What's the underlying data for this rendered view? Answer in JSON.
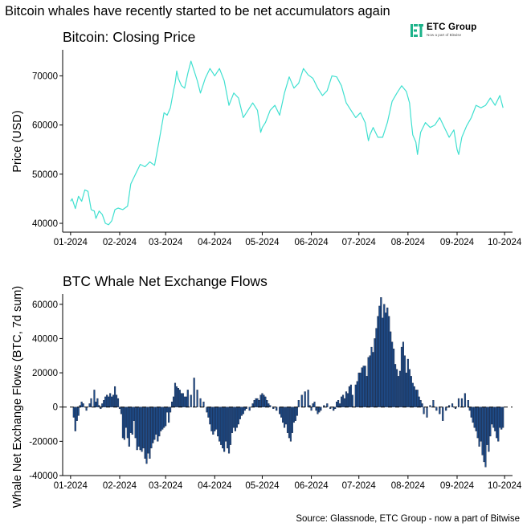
{
  "headline": "Bitcoin whales have recently started to be net accumulators again",
  "logo": {
    "name": "ETC Group",
    "tagline": "Now a part of Bitwise",
    "icon": "etc-group-logo-icon",
    "color": "#1db38a"
  },
  "source": "Source: Glassnode, ETC Group - now a part of Bitwise",
  "chart_data": [
    {
      "type": "line",
      "title": "Bitcoin: Closing Price",
      "xlabel": "",
      "ylabel": "Price (USD)",
      "color": "#40e0d0",
      "ylim": [
        38200,
        75300
      ],
      "yticks": [
        40000,
        50000,
        60000,
        70000
      ],
      "ytick_labels": [
        "40000",
        "50000",
        "60000",
        "70000"
      ],
      "xticks": [
        "01-2024",
        "02-2024",
        "03-2024",
        "04-2024",
        "05-2024",
        "06-2024",
        "07-2024",
        "08-2024",
        "09-2024",
        "10-2024"
      ],
      "x_range_days": [
        -5,
        279
      ],
      "x": [
        0,
        1,
        3,
        5,
        7,
        9,
        11,
        13,
        15,
        16,
        18,
        20,
        22,
        24,
        26,
        28,
        30,
        33,
        36,
        38,
        41,
        44,
        47,
        50,
        53,
        56,
        59,
        61,
        63,
        65,
        66,
        67,
        68,
        70,
        72,
        74,
        76,
        78,
        80,
        82,
        85,
        88,
        91,
        94,
        97,
        100,
        103,
        106,
        109,
        112,
        115,
        118,
        120,
        121,
        123,
        126,
        129,
        132,
        135,
        138,
        141,
        144,
        147,
        150,
        153,
        156,
        159,
        162,
        165,
        168,
        171,
        174,
        177,
        180,
        183,
        186,
        188,
        189,
        191,
        194,
        197,
        200,
        203,
        206,
        209,
        212,
        214,
        215,
        216,
        218,
        219,
        221,
        224,
        227,
        230,
        233,
        236,
        239,
        242,
        244,
        245,
        247,
        250,
        253,
        256,
        259,
        262,
        265,
        268,
        271,
        273
      ],
      "values": [
        44500,
        45000,
        43000,
        45500,
        44500,
        46800,
        46500,
        42800,
        42500,
        41000,
        42500,
        41800,
        40000,
        39700,
        40500,
        42800,
        43100,
        42800,
        43500,
        48000,
        50000,
        52000,
        51500,
        52500,
        51800,
        57000,
        62500,
        62000,
        63500,
        67000,
        68500,
        71000,
        69500,
        68000,
        67500,
        70500,
        73000,
        71000,
        69000,
        66500,
        69500,
        71500,
        70000,
        71500,
        69000,
        64000,
        66500,
        65500,
        61500,
        63000,
        64500,
        63000,
        58500,
        59500,
        60500,
        63000,
        64000,
        62000,
        66500,
        69800,
        67500,
        68500,
        71500,
        70200,
        69500,
        67500,
        66000,
        67000,
        70000,
        69800,
        68000,
        64500,
        63000,
        61500,
        62500,
        60500,
        56800,
        58000,
        59500,
        57500,
        57500,
        60500,
        64800,
        66500,
        68000,
        66800,
        64500,
        61000,
        58000,
        56500,
        54000,
        58500,
        60500,
        59500,
        60000,
        61500,
        59500,
        57500,
        59000,
        55000,
        54000,
        57500,
        59800,
        61500,
        64000,
        63500,
        64000,
        65500,
        64000,
        66000,
        63500
      ],
      "notes": "x = days since 2024-01-01; values read from gridlines (approximate)"
    },
    {
      "type": "bar",
      "title": "BTC Whale Net Exchange Flows",
      "xlabel": "",
      "ylabel": "Whale Net Exchange Flows (BTC, 7d sum)",
      "color": "#1f4e8c",
      "edge_color": "#0b1530",
      "zero_line": "dashed",
      "ylim": [
        -40000,
        66000
      ],
      "yticks": [
        -40000,
        -20000,
        0,
        20000,
        40000,
        60000
      ],
      "ytick_labels": [
        "-40000",
        "-20000",
        "0",
        "20000",
        "40000",
        "60000"
      ],
      "xticks": [
        "01-2024",
        "02-2024",
        "03-2024",
        "04-2024",
        "05-2024",
        "06-2024",
        "07-2024",
        "08-2024",
        "09-2024",
        "10-2024"
      ],
      "x_range_days": [
        -5,
        279
      ],
      "x": [
        2,
        3,
        4,
        5,
        6,
        7,
        8,
        10,
        12,
        13,
        15,
        16,
        17,
        18,
        19,
        20,
        21,
        22,
        23,
        24,
        25,
        26,
        27,
        28,
        29,
        30,
        31,
        32,
        33,
        34,
        35,
        36,
        37,
        38,
        39,
        40,
        41,
        42,
        43,
        44,
        45,
        46,
        47,
        48,
        49,
        50,
        51,
        52,
        53,
        54,
        55,
        56,
        57,
        58,
        59,
        60,
        61,
        62,
        63,
        64,
        65,
        66,
        67,
        68,
        69,
        70,
        71,
        72,
        73,
        74,
        76,
        78,
        80,
        82,
        84,
        86,
        87,
        88,
        89,
        90,
        91,
        92,
        93,
        94,
        95,
        96,
        97,
        98,
        99,
        100,
        101,
        102,
        103,
        104,
        105,
        106,
        107,
        108,
        109,
        110,
        111,
        113,
        115,
        116,
        117,
        118,
        119,
        120,
        121,
        122,
        123,
        124,
        125,
        126,
        128,
        130,
        132,
        133,
        134,
        135,
        136,
        137,
        138,
        139,
        140,
        141,
        142,
        143,
        144,
        146,
        148,
        150,
        151,
        152,
        153,
        154,
        155,
        156,
        157,
        158,
        160,
        162,
        164,
        166,
        167,
        168,
        169,
        170,
        171,
        172,
        173,
        174,
        175,
        176,
        177,
        178,
        180,
        181,
        182,
        183,
        184,
        185,
        186,
        187,
        188,
        189,
        190,
        191,
        192,
        193,
        194,
        195,
        196,
        197,
        198,
        199,
        200,
        201,
        202,
        203,
        204,
        205,
        206,
        207,
        208,
        209,
        210,
        211,
        212,
        213,
        214,
        215,
        216,
        217,
        218,
        219,
        220,
        221,
        222,
        223,
        225,
        227,
        229,
        231,
        233,
        235,
        237,
        239,
        241,
        243,
        245,
        247,
        249,
        251,
        252,
        253,
        254,
        255,
        256,
        257,
        258,
        259,
        260,
        261,
        262,
        263,
        264,
        265,
        266,
        267,
        268,
        269,
        270,
        271,
        272,
        273
      ],
      "values": [
        -6000,
        -14000,
        -8000,
        -5000,
        1000,
        3000,
        2000,
        -2000,
        2000,
        5000,
        10000,
        3000,
        5000,
        1000,
        -1000,
        2000,
        4000,
        6000,
        7000,
        6000,
        8000,
        6000,
        7000,
        12000,
        7000,
        5000,
        -1000,
        -4000,
        -18000,
        -19000,
        -12000,
        -18000,
        -23000,
        -15000,
        -16000,
        -8000,
        -18000,
        -25000,
        -23000,
        -25000,
        -26000,
        -24000,
        -30000,
        -33000,
        -27000,
        -30000,
        -24000,
        -21000,
        -19000,
        -16000,
        -20000,
        -17000,
        -14000,
        -13000,
        -12000,
        -11000,
        -3000,
        -9000,
        -3000,
        3000,
        6000,
        14000,
        12000,
        11000,
        10000,
        8000,
        8000,
        6000,
        6000,
        10000,
        7000,
        17000,
        10000,
        5000,
        3000,
        -3000,
        -6000,
        -10000,
        -14000,
        -16000,
        -14000,
        -13000,
        -17000,
        -20000,
        -22000,
        -24000,
        -26000,
        -20000,
        -24000,
        -27000,
        -22000,
        -15000,
        -12000,
        -14000,
        -12000,
        -10000,
        -7000,
        -5000,
        -4000,
        -2000,
        -1000,
        -2000,
        2000,
        4000,
        5000,
        5000,
        4000,
        7000,
        8000,
        7000,
        6000,
        4000,
        2000,
        1000,
        -1000,
        -2000,
        -4000,
        -6000,
        -9000,
        -12000,
        -10000,
        -15000,
        -18000,
        -20000,
        -15000,
        -9000,
        -8000,
        -5000,
        4000,
        7000,
        9000,
        10000,
        1000,
        -2000,
        2000,
        3000,
        -2000,
        -4000,
        -3000,
        -2000,
        1000,
        2000,
        -1000,
        -2000,
        -1000,
        3000,
        4000,
        2000,
        6000,
        7000,
        5000,
        9000,
        8000,
        12000,
        13000,
        7000,
        13000,
        15000,
        20000,
        20000,
        23000,
        24000,
        24000,
        18000,
        29000,
        30000,
        35000,
        32000,
        40000,
        46000,
        53000,
        59000,
        64000,
        52000,
        60000,
        55000,
        58000,
        53000,
        44000,
        38000,
        34000,
        25000,
        22000,
        18000,
        21000,
        35000,
        38000,
        30000,
        20000,
        28000,
        22000,
        18000,
        14000,
        12000,
        10000,
        10000,
        6000,
        4000,
        2000,
        -4000,
        -6000,
        1000,
        4000,
        -2000,
        -4000,
        -8000,
        -2000,
        1000,
        2000,
        -1000,
        5000,
        5000,
        8000,
        4000,
        -2000,
        -6000,
        -9000,
        -12000,
        -14000,
        -18000,
        -23000,
        -20000,
        -28000,
        -32000,
        -35000,
        -22000,
        -26000,
        -17000,
        -10000,
        -12000,
        -14000,
        -18000,
        -20000,
        -12000,
        -13000,
        -12000
      ],
      "notes": "x = days since 2024-01-01; values estimated from gridlines"
    }
  ]
}
